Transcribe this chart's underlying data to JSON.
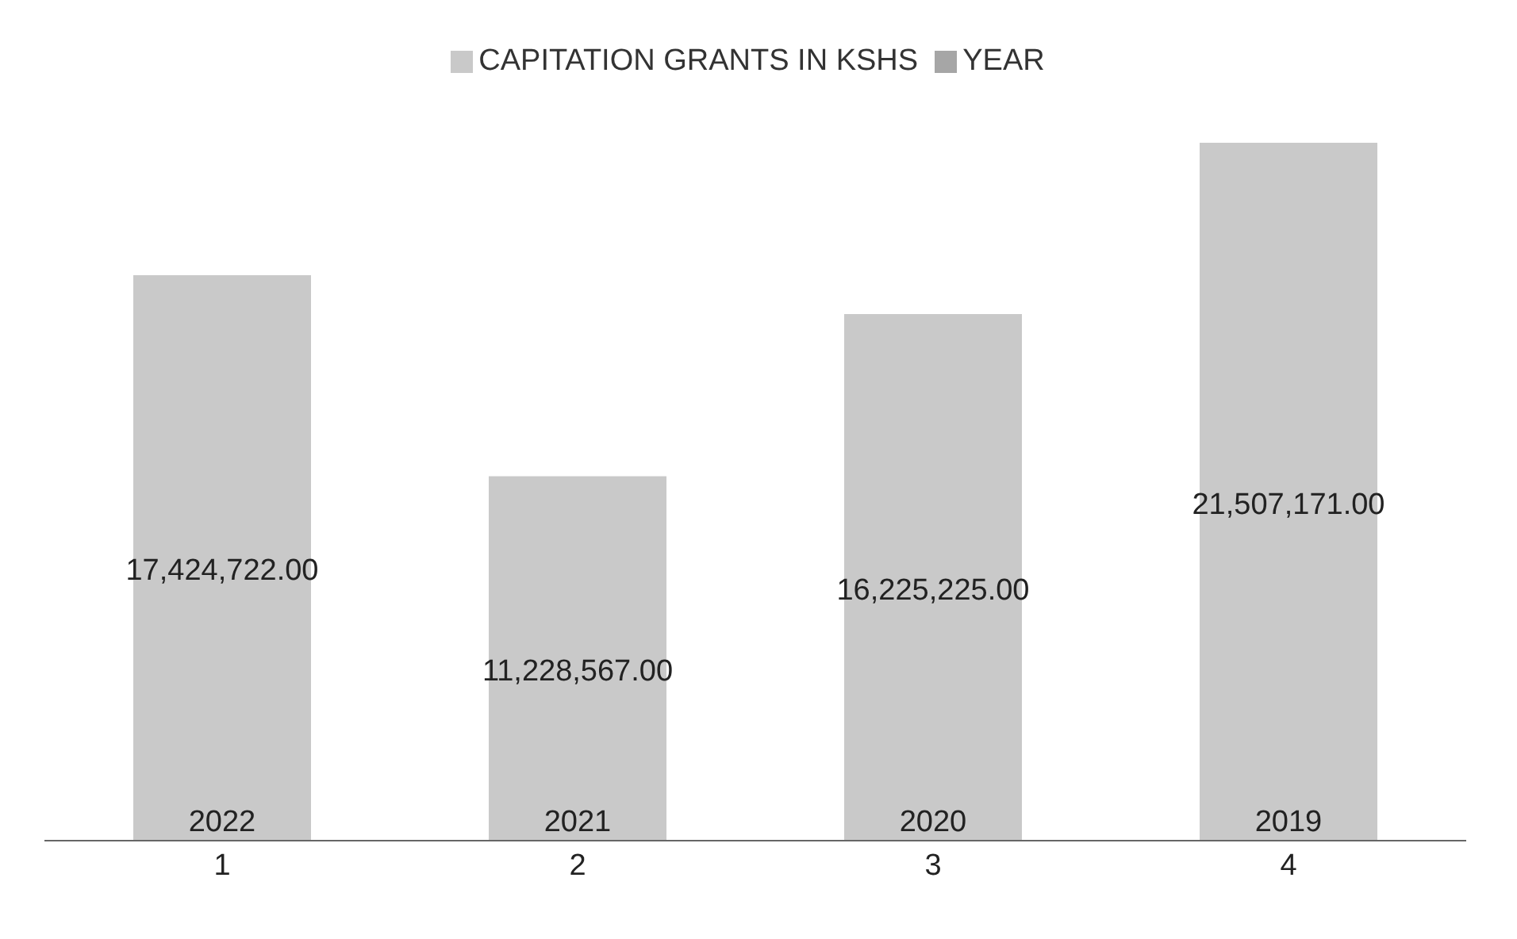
{
  "chart_data": {
    "type": "bar",
    "stacked": true,
    "legend": "top",
    "categories": [
      "1",
      "2",
      "3",
      "4"
    ],
    "series": [
      {
        "name": "YEAR",
        "color": "#a6a6a6",
        "values": [
          2022,
          2021,
          2020,
          2019
        ],
        "value_labels": [
          "2022",
          "2021",
          "2020",
          "2019"
        ]
      },
      {
        "name": "CAPITATION GRANTS IN KSHS",
        "color": "#c9c9c9",
        "values": [
          17424722,
          11228567,
          16225225,
          21507171
        ],
        "value_labels": [
          "17,424,722.00",
          "11,228,567.00",
          "16,225,225.00",
          "21,507,171.00"
        ]
      }
    ]
  }
}
